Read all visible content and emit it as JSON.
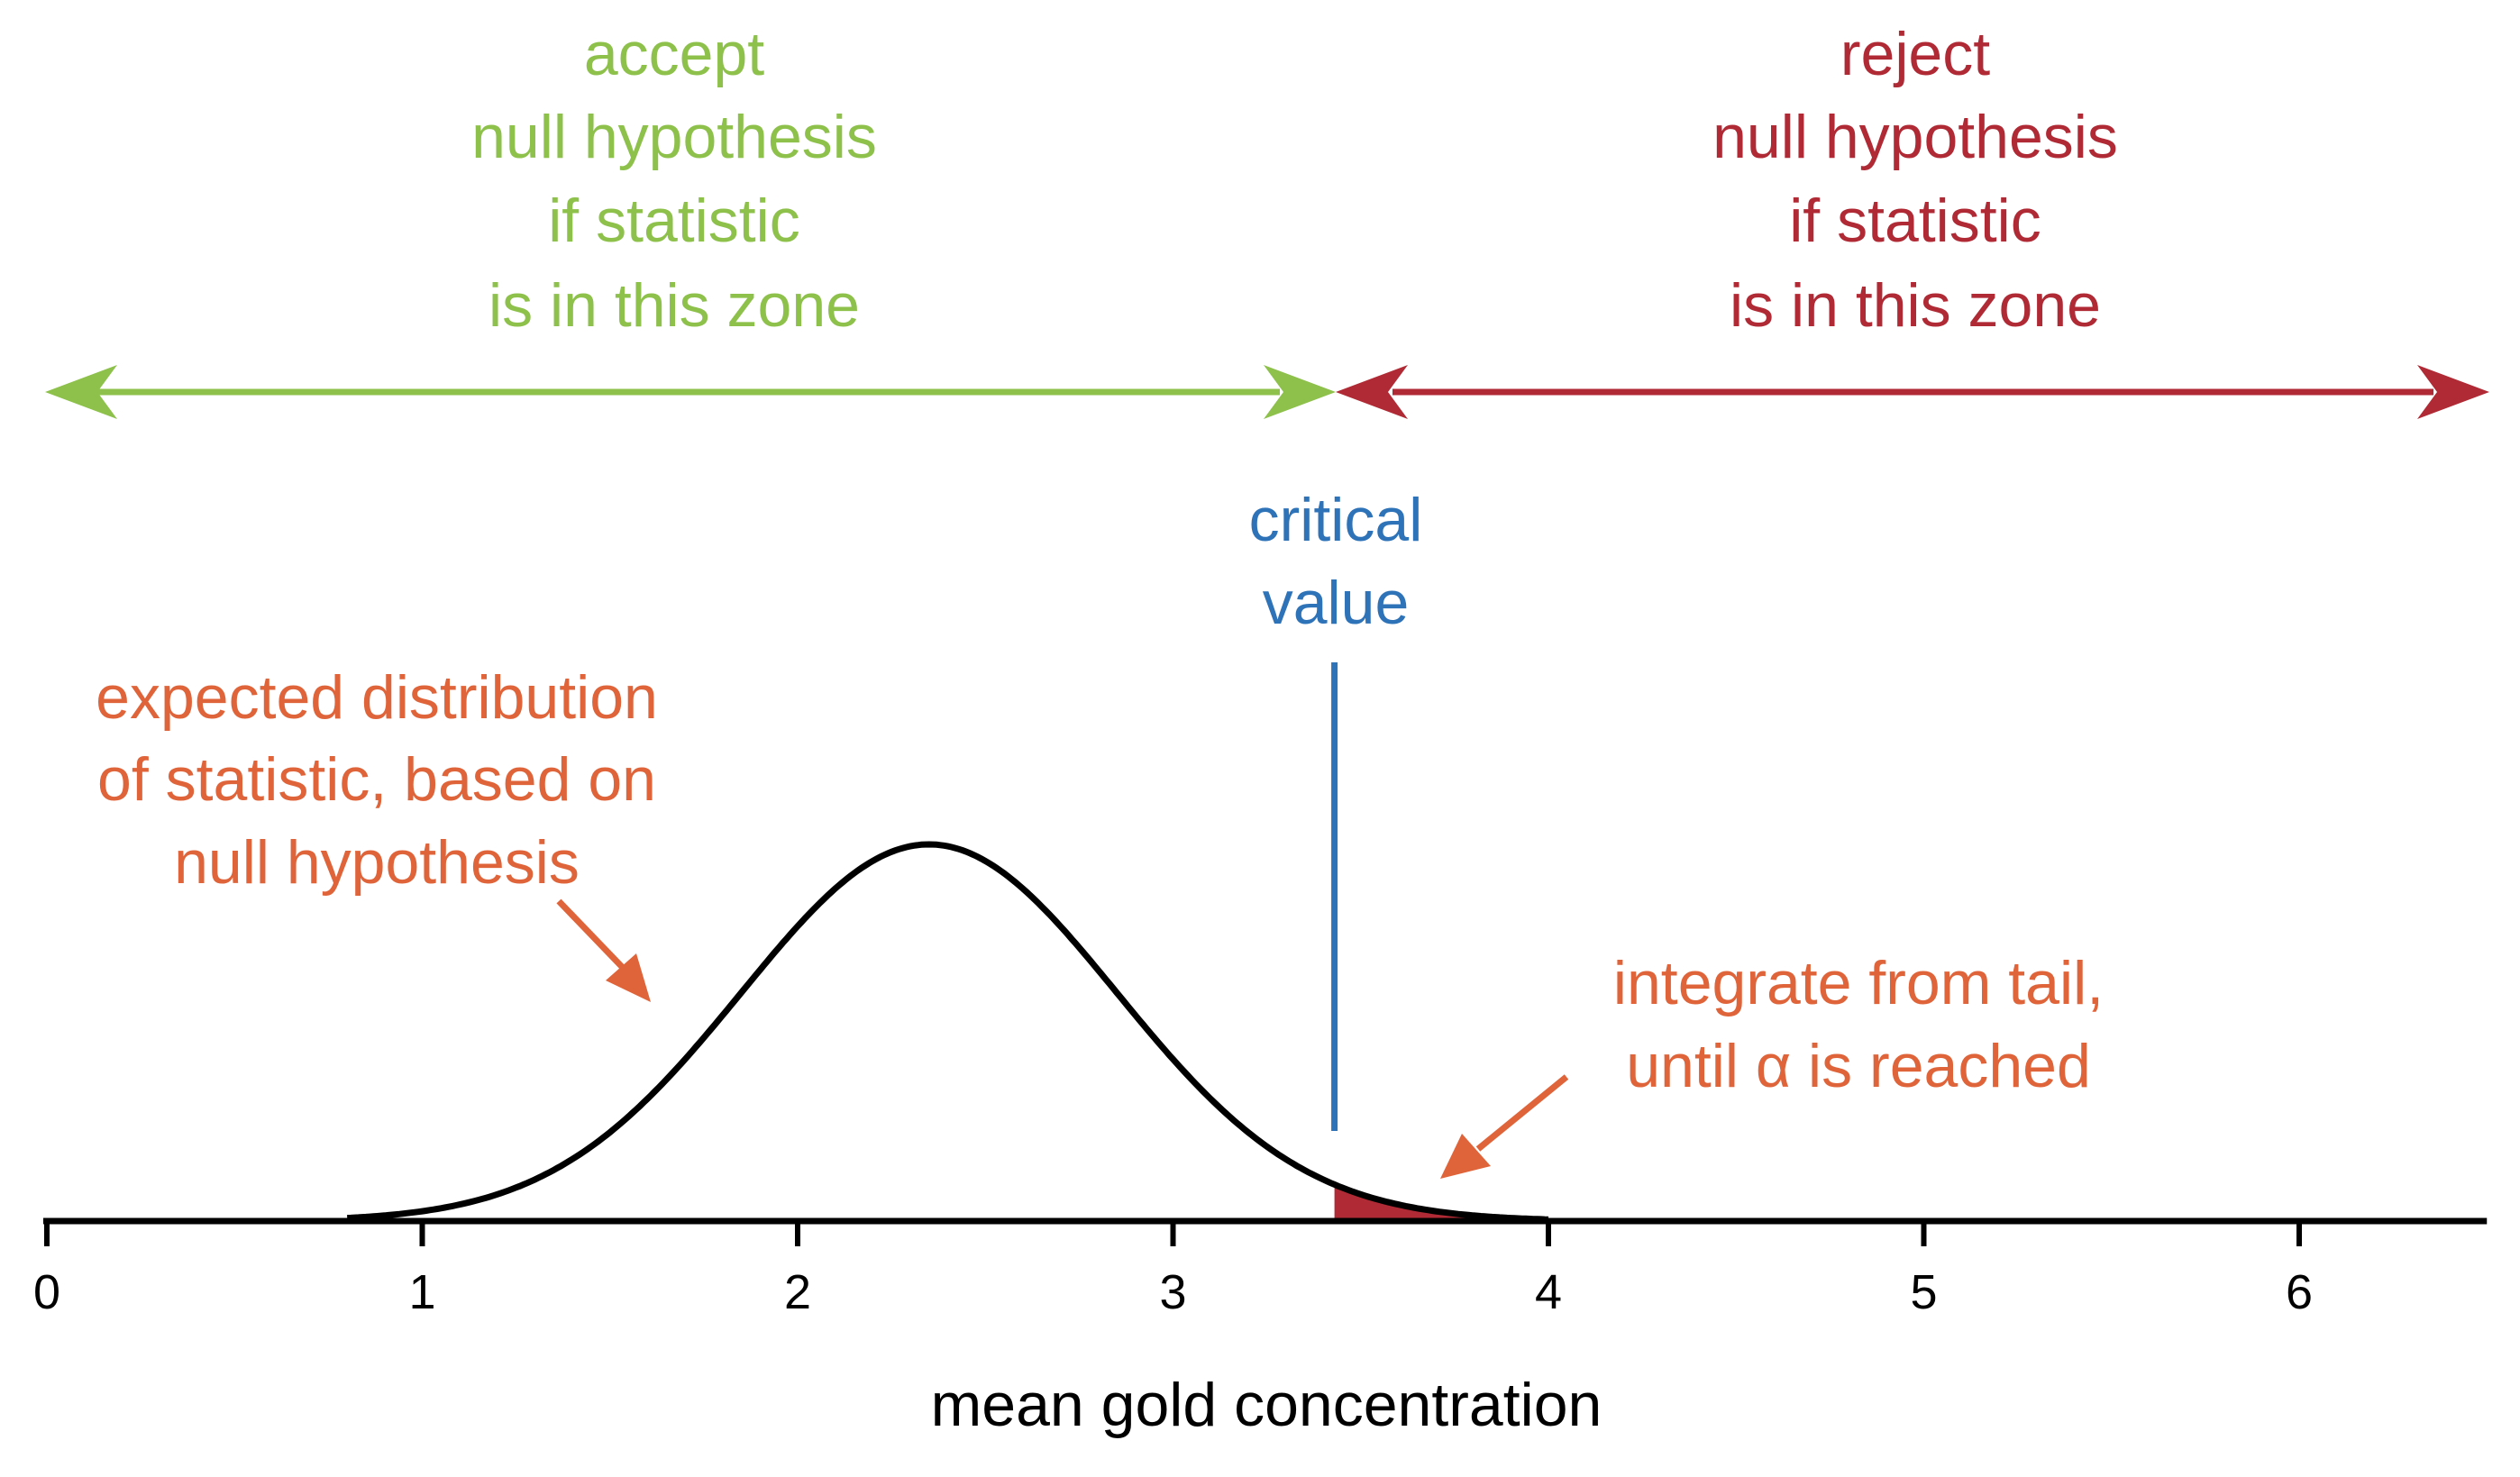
{
  "colors": {
    "accept": "#8DC14B",
    "reject": "#B02A35",
    "critical": "#2E72B8",
    "annotation": "#E0643A",
    "curve": "#000000",
    "tail_fill": "#B02A35"
  },
  "accept_zone": {
    "lines": [
      "accept",
      "null hypothesis",
      "if statistic",
      "is in this zone"
    ]
  },
  "reject_zone": {
    "lines": [
      "reject",
      "null hypothesis",
      "if statistic",
      "is in this zone"
    ]
  },
  "critical_value": {
    "lines": [
      "critical",
      "value"
    ],
    "x": 3.43
  },
  "distribution_label": {
    "lines": [
      "expected distribution",
      "of statistic, based on",
      "null hypothesis"
    ]
  },
  "tail_label": {
    "lines": [
      "integrate from tail,",
      "until α is reached"
    ]
  },
  "axis": {
    "title": "mean gold concentration",
    "ticks": [
      "0",
      "1",
      "2",
      "3",
      "4",
      "5",
      "6"
    ],
    "range": [
      0,
      6.5
    ]
  },
  "distribution": {
    "mean": 2.35,
    "sd": 0.5,
    "x_start": 0.8,
    "x_end": 4.0
  }
}
